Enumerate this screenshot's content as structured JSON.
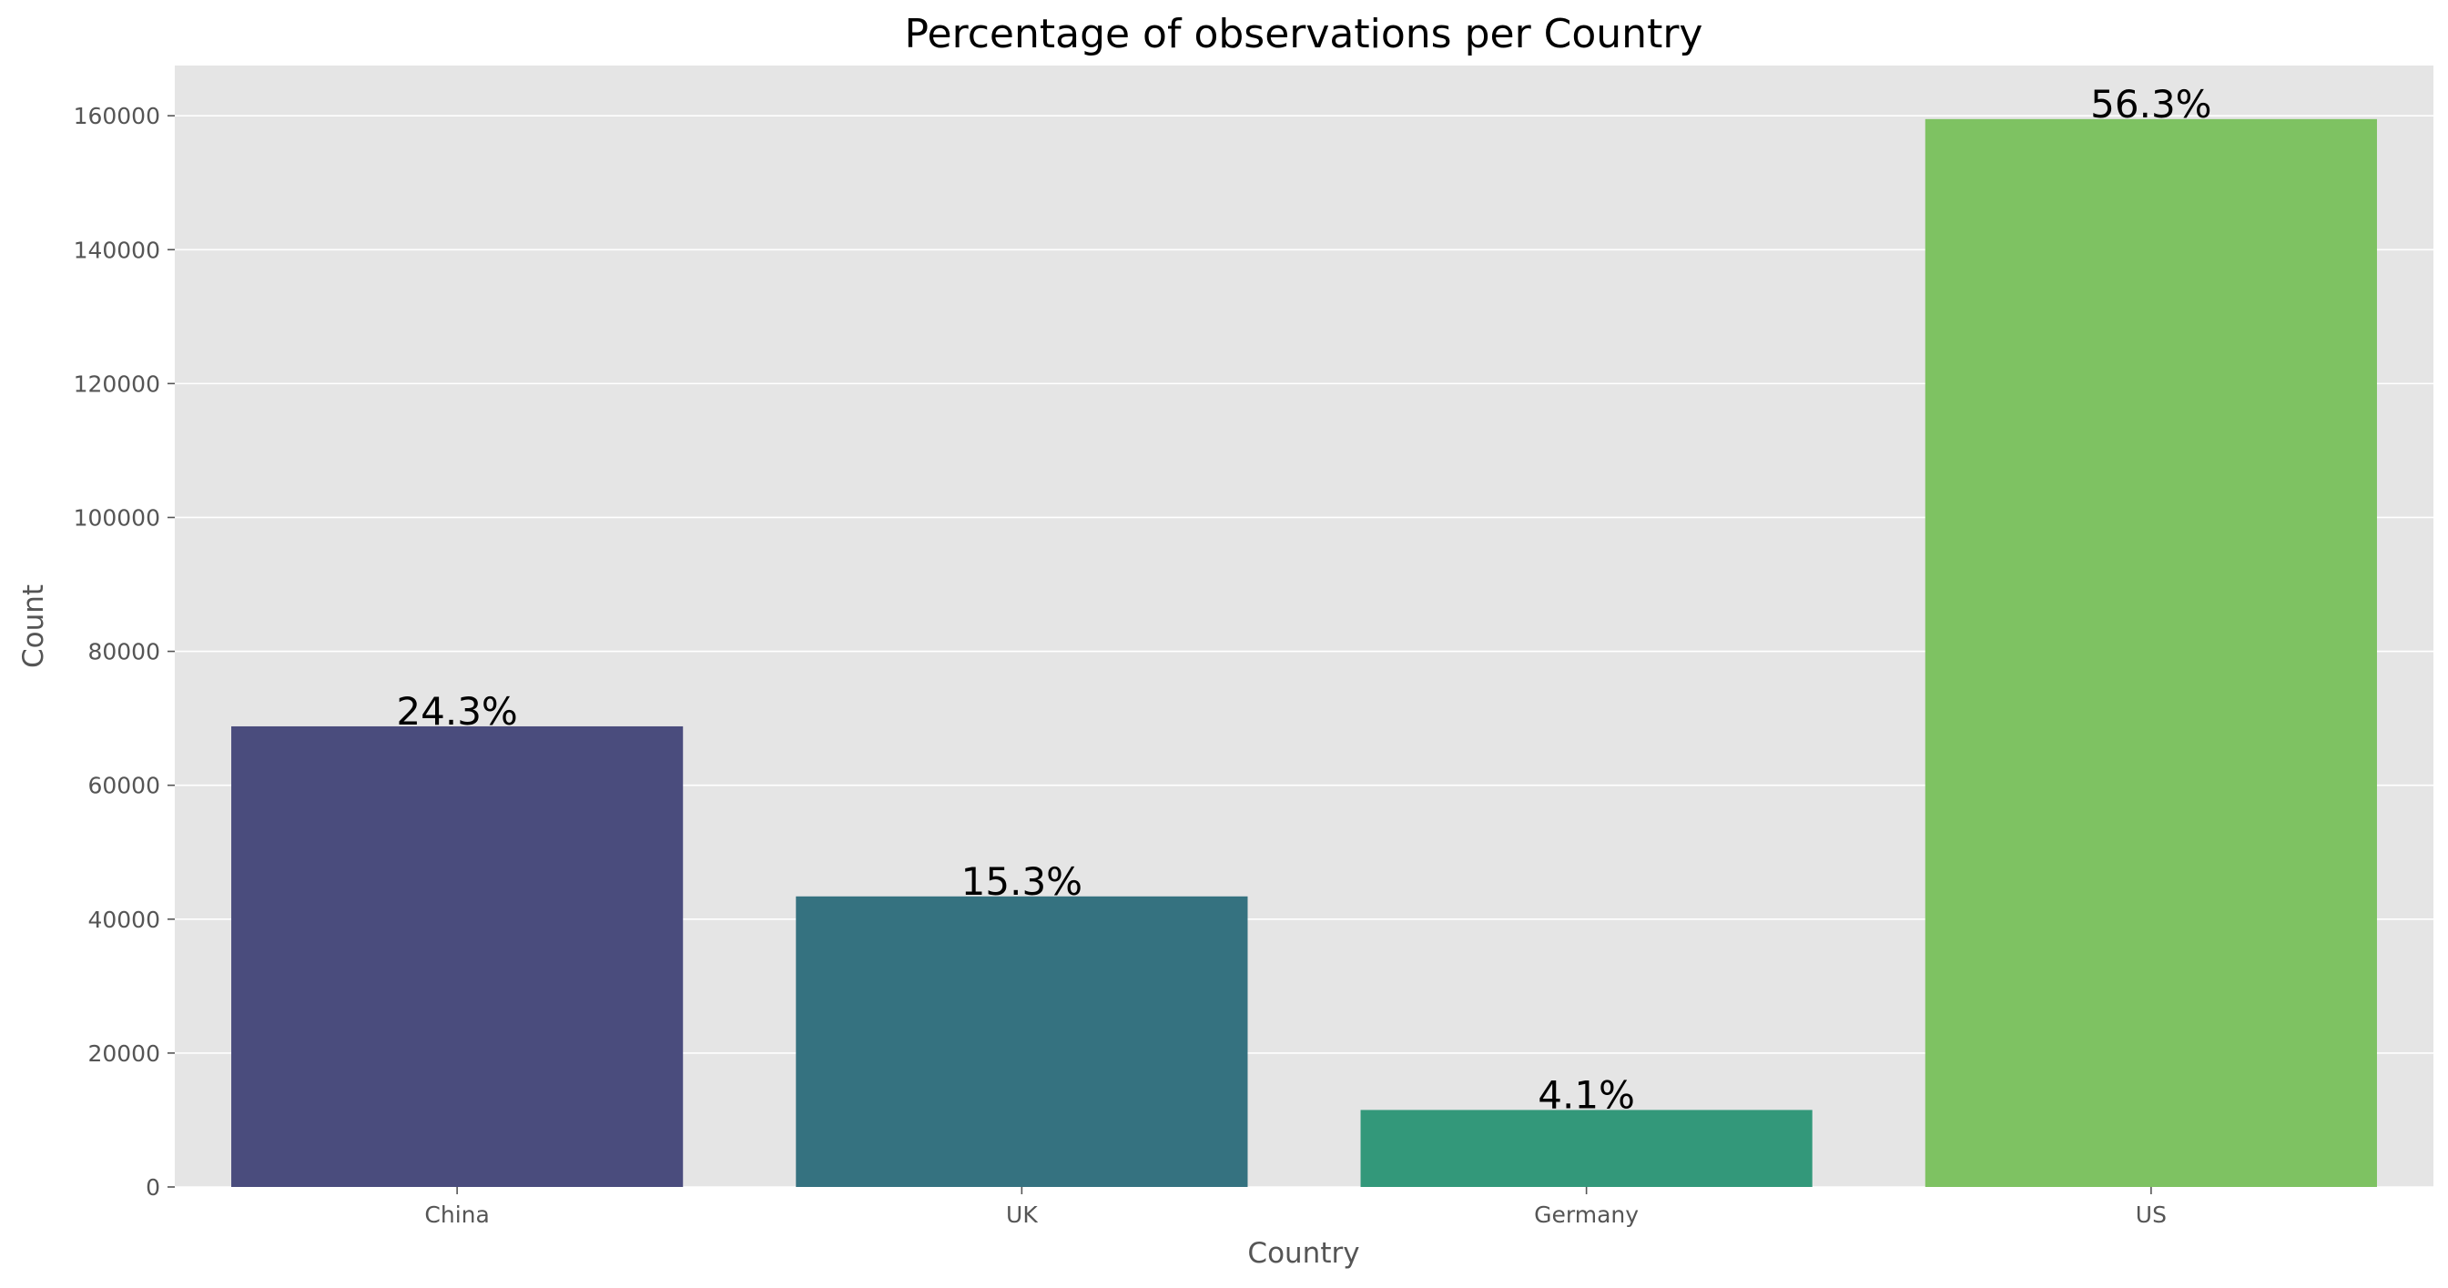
{
  "chart_data": {
    "type": "bar",
    "title": "Percentage of observations per Country",
    "xlabel": "Country",
    "ylabel": "Count",
    "categories": [
      "China",
      "UK",
      "Germany",
      "US"
    ],
    "values": [
      68800,
      43400,
      11500,
      159500
    ],
    "bar_labels": [
      "24.3%",
      "15.3%",
      "4.1%",
      "56.3%"
    ],
    "colors": [
      "#4a4c7d",
      "#357280",
      "#33987a",
      "#7ec262"
    ],
    "ylim": [
      0,
      167500
    ],
    "yticks": [
      0,
      20000,
      40000,
      60000,
      80000,
      100000,
      120000,
      140000,
      160000
    ],
    "grid": true,
    "background": "#e5e5e5"
  }
}
